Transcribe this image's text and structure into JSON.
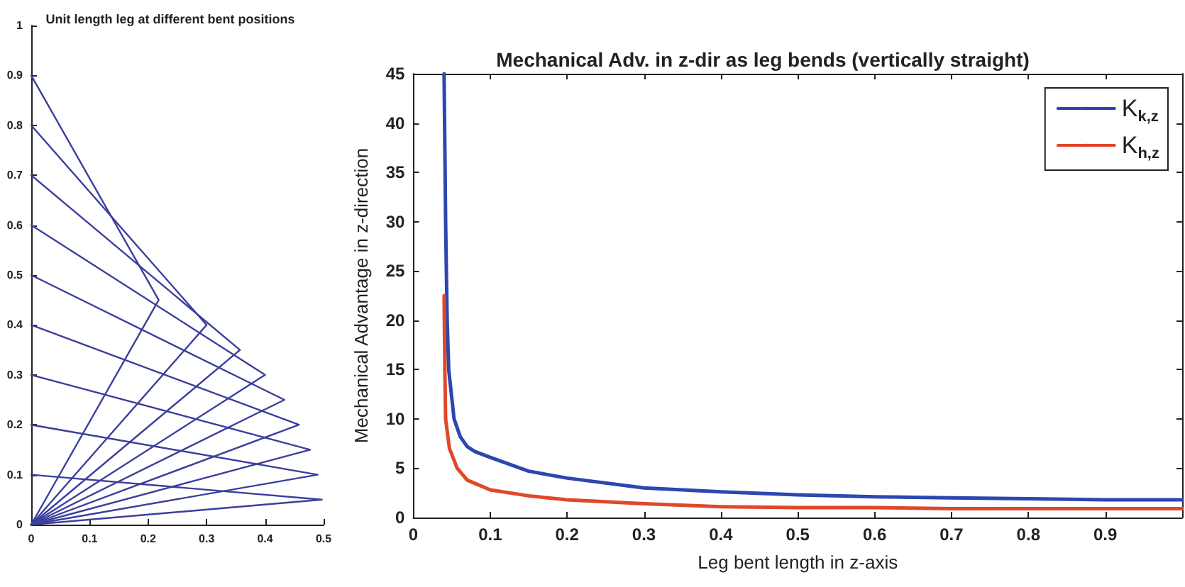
{
  "chart_data": [
    {
      "type": "line",
      "title": "Unit length leg at different bent positions",
      "color": "#3b3f9c",
      "marker": "none",
      "line_style": "solid",
      "grid": false,
      "legend": false,
      "xlim": [
        0,
        0.5
      ],
      "xticks": [
        0,
        0.1,
        0.2,
        0.3,
        0.4,
        0.5
      ],
      "ylim": [
        0,
        1
      ],
      "yticks": [
        0,
        0.1,
        0.2,
        0.3,
        0.4,
        0.5,
        0.6,
        0.7,
        0.8,
        0.9,
        1
      ],
      "series": [
        {
          "x": [
            0,
            0.218,
            0
          ],
          "values": [
            0,
            0.45,
            0.9
          ]
        },
        {
          "x": [
            0,
            0.3,
            0
          ],
          "values": [
            0,
            0.4,
            0.8
          ]
        },
        {
          "x": [
            0,
            0.357,
            0
          ],
          "values": [
            0,
            0.35,
            0.7
          ]
        },
        {
          "x": [
            0,
            0.4,
            0
          ],
          "values": [
            0,
            0.3,
            0.6
          ]
        },
        {
          "x": [
            0,
            0.433,
            0
          ],
          "values": [
            0,
            0.25,
            0.5
          ]
        },
        {
          "x": [
            0,
            0.458,
            0
          ],
          "values": [
            0,
            0.2,
            0.4
          ]
        },
        {
          "x": [
            0,
            0.477,
            0
          ],
          "values": [
            0,
            0.15,
            0.3
          ]
        },
        {
          "x": [
            0,
            0.49,
            0
          ],
          "values": [
            0,
            0.1,
            0.2
          ]
        },
        {
          "x": [
            0,
            0.497,
            0
          ],
          "values": [
            0,
            0.05,
            0.1
          ]
        }
      ]
    },
    {
      "type": "line",
      "title": "Mechanical Adv. in z-dir as leg bends (vertically straight)",
      "xlabel": "Leg bent length in z-axis",
      "ylabel": "Mechanical Advantage in z-direction",
      "marker": "none",
      "line_style": "solid",
      "grid": false,
      "legend": "top right",
      "xlim": [
        0,
        1
      ],
      "xticks": [
        0,
        0.1,
        0.2,
        0.3,
        0.4,
        0.5,
        0.6,
        0.7,
        0.8,
        0.9
      ],
      "ylim": [
        0,
        45
      ],
      "yticks": [
        0,
        5,
        10,
        15,
        20,
        25,
        30,
        35,
        40,
        45
      ],
      "series": [
        {
          "name": "K$_{k,z}$",
          "color": "#2c47b0",
          "x": [
            0.04,
            0.042,
            0.044,
            0.046,
            0.053,
            0.061,
            0.07,
            0.08,
            0.1,
            0.15,
            0.2,
            0.3,
            0.4,
            0.5,
            0.6,
            0.7,
            0.8,
            0.9,
            1.0
          ],
          "values": [
            45,
            30,
            20,
            15,
            10,
            8.2,
            7.2,
            6.7,
            6.1,
            4.7,
            4.0,
            3.0,
            2.6,
            2.3,
            2.1,
            2.0,
            1.9,
            1.8,
            1.8
          ]
        },
        {
          "name": "K$_{h,z}$",
          "color": "#e0482a",
          "x": [
            0.04,
            0.041,
            0.042,
            0.047,
            0.057,
            0.07,
            0.1,
            0.15,
            0.2,
            0.3,
            0.4,
            0.5,
            0.6,
            0.7,
            0.8,
            0.9,
            1.0
          ],
          "values": [
            22.5,
            15,
            10,
            7,
            5,
            3.8,
            2.8,
            2.2,
            1.8,
            1.4,
            1.1,
            1.0,
            1.0,
            0.9,
            0.9,
            0.9,
            0.9
          ]
        }
      ]
    }
  ]
}
